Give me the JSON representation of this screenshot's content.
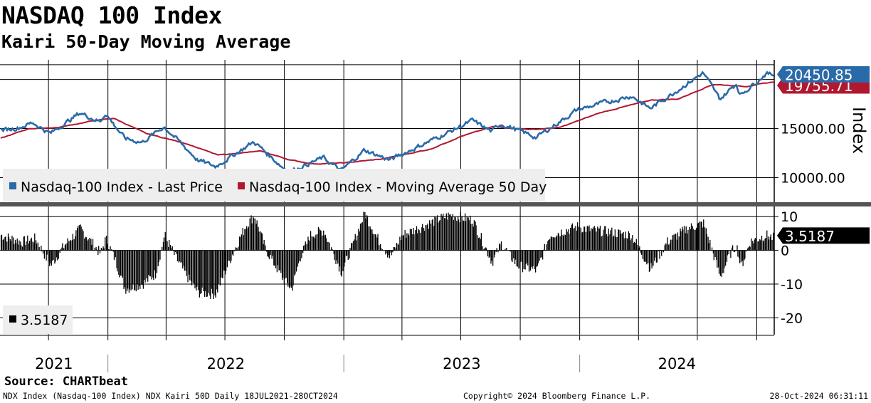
{
  "header": {
    "title": "NASDAQ 100 Index",
    "subtitle": "Kairi 50-Day Moving Average"
  },
  "footer": {
    "source": "Source: CHARTbeat",
    "description": "NDX Index (Nasdaq-100 Index) NDX Kairi 50D  Daily 18JUL2021-28OCT2024",
    "copyright": "Copyright© 2024 Bloomberg Finance L.P.",
    "timestamp": "28-Oct-2024 06:31:11"
  },
  "colors": {
    "price": "#2a6aa8",
    "ma": "#b01830",
    "kairi": "#000000",
    "grid": "#000000",
    "legend_bg": "#eeeeee",
    "panel_divider": "#555555"
  },
  "chart_data": [
    {
      "type": "line",
      "title": "",
      "xlabel": "",
      "ylabel": "Index",
      "x_range": [
        "2021-07-18",
        "2024-10-28"
      ],
      "year_labels": [
        "2021",
        "2022",
        "2023",
        "2024"
      ],
      "ylim": [
        7500,
        22000
      ],
      "y_ticks": [
        "10000.00",
        "15000.00"
      ],
      "legend_placement": "bottom-left",
      "series": [
        {
          "name": "Nasdaq-100 Index - Last Price",
          "last_label": "20450.85",
          "points": [
            [
              "2021-07-19",
              14800
            ],
            [
              "2021-08-16",
              15100
            ],
            [
              "2021-09-07",
              15600
            ],
            [
              "2021-10-04",
              14500
            ],
            [
              "2021-11-19",
              16600
            ],
            [
              "2021-12-20",
              15700
            ],
            [
              "2021-12-28",
              16560
            ],
            [
              "2022-01-27",
              14000
            ],
            [
              "2022-02-23",
              13600
            ],
            [
              "2022-03-29",
              15200
            ],
            [
              "2022-05-20",
              11800
            ],
            [
              "2022-06-16",
              11130
            ],
            [
              "2022-08-15",
              13650
            ],
            [
              "2022-09-30",
              10970
            ],
            [
              "2022-10-12",
              10700
            ],
            [
              "2022-11-30",
              12030
            ],
            [
              "2022-12-28",
              10700
            ],
            [
              "2023-02-02",
              12800
            ],
            [
              "2023-03-13",
              11800
            ],
            [
              "2023-05-31",
              14250
            ],
            [
              "2023-07-19",
              15800
            ],
            [
              "2023-08-18",
              14700
            ],
            [
              "2023-09-01",
              15500
            ],
            [
              "2023-10-26",
              14100
            ],
            [
              "2023-12-28",
              16900
            ],
            [
              "2024-03-21",
              18340
            ],
            [
              "2024-04-19",
              17040
            ],
            [
              "2024-07-10",
              20680
            ],
            [
              "2024-08-05",
              17980
            ],
            [
              "2024-08-30",
              19570
            ],
            [
              "2024-09-06",
              18420
            ],
            [
              "2024-10-15",
              20600
            ],
            [
              "2024-10-28",
              20450.85
            ]
          ]
        },
        {
          "name": "Nasdaq-100 Index - Moving Average 50 Day",
          "last_label": "19755.71",
          "points": [
            [
              "2021-07-19",
              14000
            ],
            [
              "2021-09-01",
              15000
            ],
            [
              "2021-10-15",
              15100
            ],
            [
              "2021-12-10",
              15800
            ],
            [
              "2022-01-10",
              16050
            ],
            [
              "2022-03-01",
              14500
            ],
            [
              "2022-05-01",
              13500
            ],
            [
              "2022-06-20",
              12300
            ],
            [
              "2022-08-26",
              12700
            ],
            [
              "2022-10-10",
              11800
            ],
            [
              "2022-11-15",
              11400
            ],
            [
              "2022-12-31",
              11500
            ],
            [
              "2023-03-01",
              11900
            ],
            [
              "2023-05-15",
              12900
            ],
            [
              "2023-07-01",
              14200
            ],
            [
              "2023-08-20",
              15200
            ],
            [
              "2023-10-20",
              14900
            ],
            [
              "2023-12-01",
              15100
            ],
            [
              "2024-02-01",
              16600
            ],
            [
              "2024-04-20",
              17900
            ],
            [
              "2024-06-01",
              18000
            ],
            [
              "2024-07-25",
              19500
            ],
            [
              "2024-09-15",
              19300
            ],
            [
              "2024-10-28",
              19755.71
            ]
          ]
        }
      ]
    },
    {
      "type": "bar",
      "title": "",
      "xlabel": "",
      "ylabel": "",
      "x_range": [
        "2021-07-18",
        "2024-10-28"
      ],
      "ylim": [
        -25,
        13
      ],
      "y_ticks": [
        "10",
        "0",
        "-10",
        "-20"
      ],
      "legend_placement": "bottom-left",
      "series": [
        {
          "name": "Kairi 50-Day",
          "legend_label": "3.5187",
          "last_label": "3.5187",
          "points": [
            [
              "2021-07-19",
              4.5
            ],
            [
              "2021-08-20",
              2.5
            ],
            [
              "2021-09-10",
              3.5
            ],
            [
              "2021-10-04",
              -4.5
            ],
            [
              "2021-10-25",
              1.5
            ],
            [
              "2021-11-19",
              6.5
            ],
            [
              "2021-12-20",
              -1.0
            ],
            [
              "2021-12-28",
              3.5
            ],
            [
              "2022-01-10",
              -2.0
            ],
            [
              "2022-01-27",
              -11.5
            ],
            [
              "2022-02-23",
              -10.0
            ],
            [
              "2022-03-15",
              -7.0
            ],
            [
              "2022-03-29",
              4.5
            ],
            [
              "2022-04-15",
              -2.0
            ],
            [
              "2022-05-10",
              -10.0
            ],
            [
              "2022-05-20",
              -12.5
            ],
            [
              "2022-06-16",
              -13.0
            ],
            [
              "2022-07-10",
              -2.0
            ],
            [
              "2022-08-01",
              7.0
            ],
            [
              "2022-08-15",
              10.5
            ],
            [
              "2022-09-01",
              0.5
            ],
            [
              "2022-09-30",
              -9.0
            ],
            [
              "2022-10-12",
              -11.5
            ],
            [
              "2022-10-25",
              -2.0
            ],
            [
              "2022-11-10",
              4.5
            ],
            [
              "2022-11-30",
              6.0
            ],
            [
              "2022-12-28",
              -6.5
            ],
            [
              "2023-01-15",
              2.0
            ],
            [
              "2023-02-02",
              11.0
            ],
            [
              "2023-02-20",
              4.0
            ],
            [
              "2023-03-13",
              -2.0
            ],
            [
              "2023-04-01",
              4.5
            ],
            [
              "2023-05-31",
              9.5
            ],
            [
              "2023-06-15",
              10.5
            ],
            [
              "2023-07-19",
              9.0
            ],
            [
              "2023-08-18",
              -3.5
            ],
            [
              "2023-09-01",
              2.0
            ],
            [
              "2023-09-26",
              -4.5
            ],
            [
              "2023-10-26",
              -6.0
            ],
            [
              "2023-11-15",
              4.5
            ],
            [
              "2023-12-28",
              7.0
            ],
            [
              "2024-01-20",
              6.0
            ],
            [
              "2024-02-15",
              5.5
            ],
            [
              "2024-03-21",
              4.5
            ],
            [
              "2024-04-19",
              -5.5
            ],
            [
              "2024-05-15",
              2.5
            ],
            [
              "2024-06-15",
              6.5
            ],
            [
              "2024-07-10",
              8.0
            ],
            [
              "2024-07-25",
              -1.0
            ],
            [
              "2024-08-05",
              -8.0
            ],
            [
              "2024-08-20",
              -1.0
            ],
            [
              "2024-08-30",
              1.5
            ],
            [
              "2024-09-06",
              -5.0
            ],
            [
              "2024-09-20",
              2.5
            ],
            [
              "2024-10-15",
              4.5
            ],
            [
              "2024-10-28",
              3.5187
            ]
          ]
        }
      ]
    }
  ]
}
